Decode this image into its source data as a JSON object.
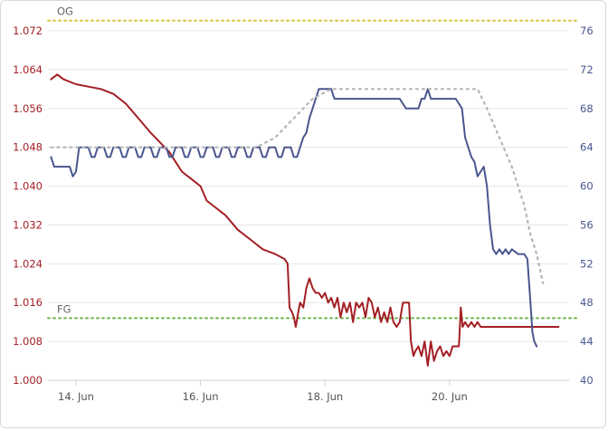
{
  "chart_data": {
    "type": "line",
    "x_axis": {
      "ticks": [
        "14. Jun",
        "16. Jun",
        "18. Jun",
        "20. Jun"
      ],
      "tick_days": [
        14,
        16,
        18,
        20
      ],
      "range_days": [
        13.55,
        21.92
      ]
    },
    "y_left": {
      "ticks": [
        "1.000",
        "1.008",
        "1.016",
        "1.024",
        "1.032",
        "1.040",
        "1.048",
        "1.056",
        "1.064",
        "1.072"
      ],
      "range": [
        1.0,
        1.072
      ],
      "color": "#a31f24"
    },
    "y_right": {
      "ticks": [
        "40",
        "44",
        "48",
        "52",
        "56",
        "60",
        "64",
        "68",
        "72",
        "76"
      ],
      "range": [
        40,
        76
      ],
      "color": "#4a568f"
    },
    "reference_lines": [
      {
        "label": "OG",
        "value": 1.0741,
        "axis": "left",
        "color": "#d9c43a"
      },
      {
        "label": "FG",
        "value": 1.0128,
        "axis": "left",
        "color": "#6cb74c"
      }
    ],
    "series": [
      {
        "axis": "left",
        "color": "#a31f24",
        "style": "solid",
        "points": [
          [
            13.6,
            1.062
          ],
          [
            13.7,
            1.063
          ],
          [
            13.8,
            1.062
          ],
          [
            14.0,
            1.061
          ],
          [
            14.2,
            1.0605
          ],
          [
            14.4,
            1.06
          ],
          [
            14.6,
            1.059
          ],
          [
            14.8,
            1.057
          ],
          [
            15.0,
            1.054
          ],
          [
            15.2,
            1.051
          ],
          [
            15.35,
            1.049
          ],
          [
            15.5,
            1.047
          ],
          [
            15.6,
            1.045
          ],
          [
            15.7,
            1.043
          ],
          [
            15.8,
            1.042
          ],
          [
            15.9,
            1.041
          ],
          [
            16.0,
            1.04
          ],
          [
            16.1,
            1.037
          ],
          [
            16.2,
            1.036
          ],
          [
            16.4,
            1.034
          ],
          [
            16.6,
            1.031
          ],
          [
            16.8,
            1.029
          ],
          [
            17.0,
            1.027
          ],
          [
            17.2,
            1.026
          ],
          [
            17.35,
            1.025
          ],
          [
            17.4,
            1.024
          ],
          [
            17.43,
            1.015
          ],
          [
            17.47,
            1.014
          ],
          [
            17.5,
            1.013
          ],
          [
            17.53,
            1.011
          ],
          [
            17.57,
            1.014
          ],
          [
            17.6,
            1.016
          ],
          [
            17.65,
            1.015
          ],
          [
            17.7,
            1.019
          ],
          [
            17.75,
            1.021
          ],
          [
            17.8,
            1.019
          ],
          [
            17.85,
            1.018
          ],
          [
            17.9,
            1.018
          ],
          [
            17.95,
            1.017
          ],
          [
            18.0,
            1.018
          ],
          [
            18.05,
            1.016
          ],
          [
            18.1,
            1.017
          ],
          [
            18.15,
            1.015
          ],
          [
            18.2,
            1.017
          ],
          [
            18.25,
            1.013
          ],
          [
            18.3,
            1.016
          ],
          [
            18.35,
            1.014
          ],
          [
            18.4,
            1.016
          ],
          [
            18.45,
            1.012
          ],
          [
            18.5,
            1.016
          ],
          [
            18.55,
            1.015
          ],
          [
            18.6,
            1.016
          ],
          [
            18.65,
            1.013
          ],
          [
            18.7,
            1.017
          ],
          [
            18.75,
            1.016
          ],
          [
            18.8,
            1.013
          ],
          [
            18.85,
            1.015
          ],
          [
            18.9,
            1.012
          ],
          [
            18.95,
            1.014
          ],
          [
            19.0,
            1.012
          ],
          [
            19.05,
            1.015
          ],
          [
            19.1,
            1.012
          ],
          [
            19.15,
            1.011
          ],
          [
            19.2,
            1.012
          ],
          [
            19.25,
            1.016
          ],
          [
            19.3,
            1.016
          ],
          [
            19.35,
            1.016
          ],
          [
            19.38,
            1.008
          ],
          [
            19.42,
            1.005
          ],
          [
            19.45,
            1.006
          ],
          [
            19.5,
            1.007
          ],
          [
            19.55,
            1.005
          ],
          [
            19.6,
            1.008
          ],
          [
            19.65,
            1.003
          ],
          [
            19.7,
            1.008
          ],
          [
            19.75,
            1.004
          ],
          [
            19.8,
            1.006
          ],
          [
            19.85,
            1.007
          ],
          [
            19.9,
            1.005
          ],
          [
            19.95,
            1.006
          ],
          [
            20.0,
            1.005
          ],
          [
            20.05,
            1.007
          ],
          [
            20.1,
            1.007
          ],
          [
            20.15,
            1.007
          ],
          [
            20.18,
            1.015
          ],
          [
            20.21,
            1.011
          ],
          [
            20.25,
            1.012
          ],
          [
            20.3,
            1.011
          ],
          [
            20.35,
            1.012
          ],
          [
            20.4,
            1.011
          ],
          [
            20.45,
            1.012
          ],
          [
            20.5,
            1.011
          ],
          [
            20.6,
            1.011
          ],
          [
            20.7,
            1.011
          ],
          [
            20.8,
            1.011
          ],
          [
            21.0,
            1.011
          ],
          [
            21.5,
            1.011
          ],
          [
            21.6,
            1.011
          ],
          [
            21.75,
            1.011
          ]
        ]
      },
      {
        "axis": "right",
        "color": "#4a568f",
        "style": "solid",
        "points": [
          [
            13.6,
            63.0
          ],
          [
            13.65,
            62.0
          ],
          [
            13.7,
            62.0
          ],
          [
            13.8,
            62.0
          ],
          [
            13.9,
            62.0
          ],
          [
            13.95,
            61.0
          ],
          [
            14.0,
            61.5
          ],
          [
            14.05,
            64.0
          ],
          [
            14.2,
            64.0
          ],
          [
            14.25,
            63.0
          ],
          [
            14.3,
            63.0
          ],
          [
            14.35,
            64.0
          ],
          [
            14.45,
            64.0
          ],
          [
            14.5,
            63.0
          ],
          [
            14.55,
            63.0
          ],
          [
            14.6,
            64.0
          ],
          [
            14.7,
            64.0
          ],
          [
            14.75,
            63.0
          ],
          [
            14.8,
            63.0
          ],
          [
            14.85,
            64.0
          ],
          [
            14.95,
            64.0
          ],
          [
            15.0,
            63.0
          ],
          [
            15.05,
            63.0
          ],
          [
            15.1,
            64.0
          ],
          [
            15.2,
            64.0
          ],
          [
            15.25,
            63.0
          ],
          [
            15.3,
            63.0
          ],
          [
            15.35,
            64.0
          ],
          [
            15.45,
            64.0
          ],
          [
            15.5,
            63.0
          ],
          [
            15.55,
            63.0
          ],
          [
            15.6,
            64.0
          ],
          [
            15.7,
            64.0
          ],
          [
            15.75,
            63.0
          ],
          [
            15.8,
            63.0
          ],
          [
            15.85,
            64.0
          ],
          [
            15.95,
            64.0
          ],
          [
            16.0,
            63.0
          ],
          [
            16.05,
            63.0
          ],
          [
            16.1,
            64.0
          ],
          [
            16.2,
            64.0
          ],
          [
            16.25,
            63.0
          ],
          [
            16.3,
            63.0
          ],
          [
            16.35,
            64.0
          ],
          [
            16.45,
            64.0
          ],
          [
            16.5,
            63.0
          ],
          [
            16.55,
            63.0
          ],
          [
            16.6,
            64.0
          ],
          [
            16.7,
            64.0
          ],
          [
            16.75,
            63.0
          ],
          [
            16.8,
            63.0
          ],
          [
            16.85,
            64.0
          ],
          [
            16.95,
            64.0
          ],
          [
            17.0,
            63.0
          ],
          [
            17.05,
            63.0
          ],
          [
            17.1,
            64.0
          ],
          [
            17.2,
            64.0
          ],
          [
            17.25,
            63.0
          ],
          [
            17.3,
            63.0
          ],
          [
            17.35,
            64.0
          ],
          [
            17.45,
            64.0
          ],
          [
            17.5,
            63.0
          ],
          [
            17.55,
            63.0
          ],
          [
            17.6,
            64.0
          ],
          [
            17.65,
            65.0
          ],
          [
            17.7,
            65.5
          ],
          [
            17.75,
            67.0
          ],
          [
            17.8,
            68.0
          ],
          [
            17.85,
            69.0
          ],
          [
            17.9,
            70.0
          ],
          [
            18.1,
            70.0
          ],
          [
            18.15,
            69.0
          ],
          [
            18.5,
            69.0
          ],
          [
            19.2,
            69.0
          ],
          [
            19.3,
            68.0
          ],
          [
            19.5,
            68.0
          ],
          [
            19.55,
            69.0
          ],
          [
            19.6,
            69.0
          ],
          [
            19.65,
            70.0
          ],
          [
            19.7,
            69.0
          ],
          [
            19.8,
            69.0
          ],
          [
            20.0,
            69.0
          ],
          [
            20.1,
            69.0
          ],
          [
            20.2,
            68.0
          ],
          [
            20.25,
            65.0
          ],
          [
            20.35,
            63.0
          ],
          [
            20.4,
            62.5
          ],
          [
            20.45,
            61.0
          ],
          [
            20.5,
            61.5
          ],
          [
            20.55,
            62.0
          ],
          [
            20.6,
            60.0
          ],
          [
            20.65,
            56.0
          ],
          [
            20.7,
            53.5
          ],
          [
            20.75,
            53.0
          ],
          [
            20.8,
            53.5
          ],
          [
            20.85,
            53.0
          ],
          [
            20.9,
            53.5
          ],
          [
            20.95,
            53.0
          ],
          [
            21.0,
            53.5
          ],
          [
            21.1,
            53.0
          ],
          [
            21.2,
            53.0
          ],
          [
            21.25,
            52.5
          ],
          [
            21.3,
            48.0
          ],
          [
            21.33,
            45.0
          ],
          [
            21.36,
            44.0
          ],
          [
            21.4,
            43.5
          ]
        ]
      },
      {
        "axis": "right",
        "color": "#b4b4b4",
        "style": "dotted",
        "points": [
          [
            13.6,
            64.0
          ],
          [
            14.0,
            64.0
          ],
          [
            15.0,
            64.0
          ],
          [
            16.0,
            64.0
          ],
          [
            16.9,
            64.0
          ],
          [
            17.2,
            65.0
          ],
          [
            17.5,
            67.0
          ],
          [
            17.8,
            69.0
          ],
          [
            18.1,
            70.0
          ],
          [
            18.5,
            70.0
          ],
          [
            20.0,
            70.0
          ],
          [
            20.45,
            70.0
          ],
          [
            20.6,
            68.0
          ],
          [
            20.8,
            65.0
          ],
          [
            21.0,
            62.0
          ],
          [
            21.2,
            58.0
          ],
          [
            21.3,
            55.0
          ],
          [
            21.4,
            53.0
          ],
          [
            21.5,
            50.0
          ]
        ]
      }
    ],
    "grid": true,
    "legend": "none"
  }
}
